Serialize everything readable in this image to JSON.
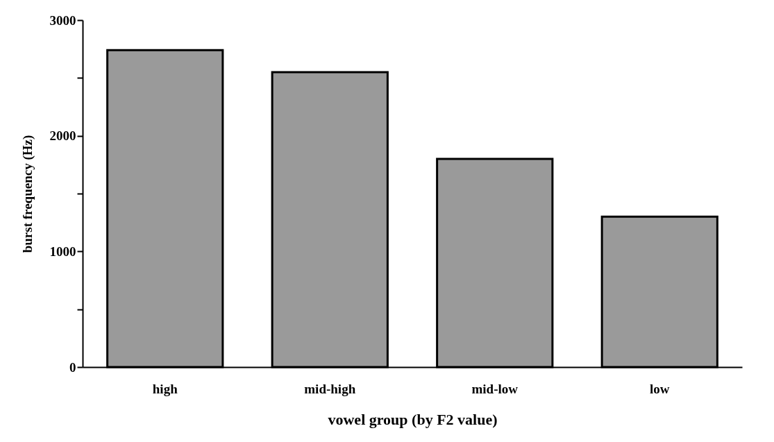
{
  "chart_data": {
    "type": "bar",
    "xlabel": "vowel group (by F2 value)",
    "ylabel": "burst frequency (Hz)",
    "categories": [
      "high",
      "mid-high",
      "mid-low",
      "low"
    ],
    "values": [
      2740,
      2550,
      1800,
      1300
    ],
    "color": "#9a9a9a",
    "ylim": [
      0,
      3000
    ],
    "yticks": [
      0,
      {
        "value": 500,
        "label": null
      },
      1000,
      {
        "value": 1500,
        "label": null
      },
      2000,
      {
        "value": 2500,
        "label": null
      },
      3000
    ],
    "grid": false
  }
}
